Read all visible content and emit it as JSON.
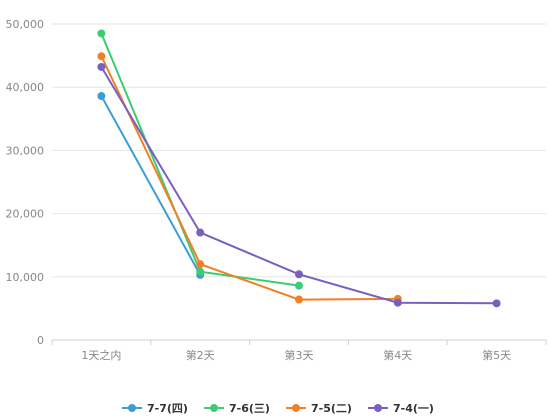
{
  "chart_data": {
    "type": "line",
    "categories": [
      "1天之内",
      "第2天",
      "第3天",
      "第4天",
      "第5天"
    ],
    "ylim": [
      0,
      50000
    ],
    "y_ticks": [
      0,
      10000,
      20000,
      30000,
      40000,
      50000
    ],
    "y_tick_labels": [
      "0",
      "10,000",
      "20,000",
      "30,000",
      "40,000",
      "50,000"
    ],
    "grid": true,
    "legend_position": "bottom",
    "series": [
      {
        "name": "7-7(四)",
        "color": "#3b9ed4",
        "values": [
          38600,
          10300,
          null,
          null,
          null
        ]
      },
      {
        "name": "7-6(三)",
        "color": "#3ccc72",
        "values": [
          48500,
          10800,
          8600,
          null,
          null
        ]
      },
      {
        "name": "7-5(二)",
        "color": "#ee8126",
        "values": [
          44900,
          12000,
          6400,
          6500,
          null
        ]
      },
      {
        "name": "7-4(一)",
        "color": "#7a5fc0",
        "values": [
          43200,
          17000,
          10400,
          5900,
          5800
        ]
      }
    ]
  }
}
